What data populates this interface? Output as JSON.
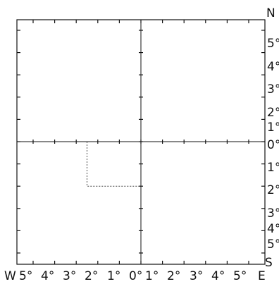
{
  "diagram": {
    "north_label": "N",
    "south_label": "S",
    "west_label": "W",
    "east_label": "E",
    "bottom_ticks": [
      "5°",
      "4°",
      "3°",
      "2°",
      "1°",
      "0°",
      "1°",
      "2°",
      "3°",
      "4°",
      "5°"
    ],
    "right_ticks": [
      "5°",
      "4°",
      "3°",
      "2°",
      "1°",
      "0°",
      "1°",
      "2°",
      "3°",
      "4°",
      "5°"
    ],
    "point": {
      "lon": -2.5,
      "lat": -2
    },
    "line_color": "#111111",
    "guide_color": "#444444"
  }
}
